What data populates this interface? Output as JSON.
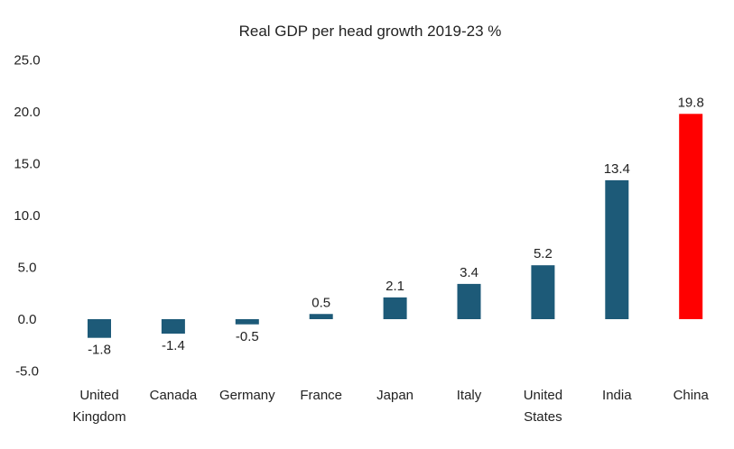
{
  "chart_data": {
    "type": "bar",
    "title": "Real GDP per head growth 2019-23 %",
    "xlabel": "",
    "ylabel": "",
    "ylim": [
      -5,
      25
    ],
    "yticks": [
      "25.0",
      "20.0",
      "15.0",
      "10.0",
      "5.0",
      "0.0",
      "-5.0"
    ],
    "ytick_values": [
      25,
      20,
      15,
      10,
      5,
      0,
      -5
    ],
    "grid": false,
    "legend": "none",
    "categories": [
      [
        "United",
        "Kingdom"
      ],
      [
        "Canada"
      ],
      [
        "Germany"
      ],
      [
        "France"
      ],
      [
        "Japan"
      ],
      [
        "Italy"
      ],
      [
        "United",
        "States"
      ],
      [
        "India"
      ],
      [
        "China"
      ]
    ],
    "values": [
      -1.8,
      -1.4,
      -0.5,
      0.5,
      2.1,
      3.4,
      5.2,
      13.4,
      19.8
    ],
    "data_labels": [
      "-1.8",
      "-1.4",
      "-0.5",
      "0.5",
      "2.1",
      "3.4",
      "5.2",
      "13.4",
      "19.8"
    ],
    "colors": {
      "default": "#1d5a78",
      "highlight": "#ff0000"
    },
    "highlight_index": 8
  }
}
